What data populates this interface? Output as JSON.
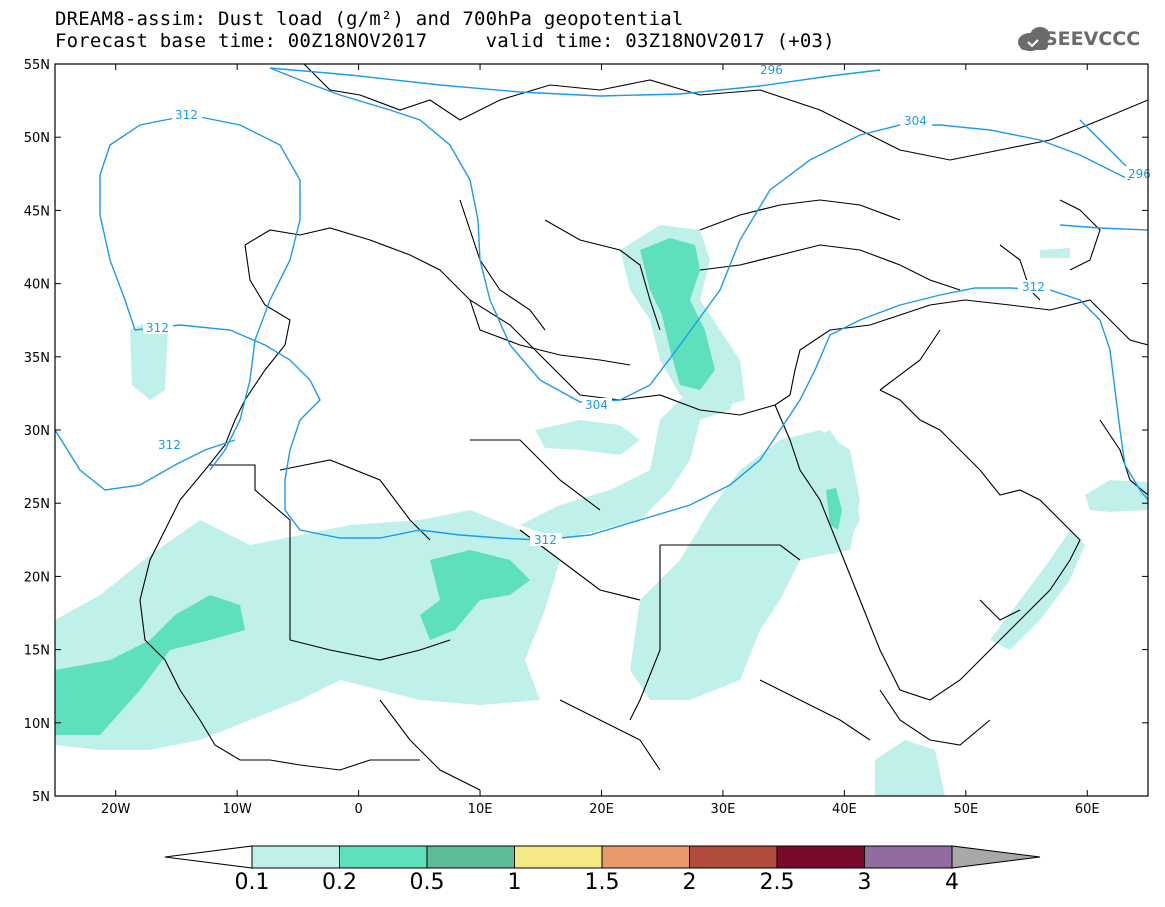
{
  "title": {
    "line1": "DREAM8-assim: Dust load (g/m²) and 700hPa geopotential",
    "line2": "Forecast base time: 00Z18NOV2017     valid time: 03Z18NOV2017 (+03)"
  },
  "logo": {
    "text": "SEEVCCC",
    "icon": "cloud-icon"
  },
  "map": {
    "lat_labels": [
      "55N",
      "50N",
      "45N",
      "40N",
      "35N",
      "30N",
      "25N",
      "20N",
      "15N",
      "10N",
      "5N"
    ],
    "lon_labels": [
      "20W",
      "10W",
      "0",
      "10E",
      "20E",
      "30E",
      "40E",
      "50E",
      "60E"
    ],
    "lon_range": [
      -25,
      65
    ],
    "lat_range": [
      5,
      55
    ],
    "contour_labels": [
      "296",
      "312",
      "304",
      "296",
      "312",
      "312",
      "312",
      "304",
      "312"
    ]
  },
  "colorbar": {
    "labels": [
      "0.1",
      "0.2",
      "0.5",
      "1",
      "1.5",
      "2",
      "2.5",
      "3",
      "4"
    ],
    "colors": [
      "#c0f0ea",
      "#5ee0bc",
      "#5ebc98",
      "#f5e985",
      "#e99a6a",
      "#b04c3c",
      "#7a0a2a",
      "#906ca0"
    ],
    "low_color": "#ffffff",
    "high_color": "#a8a8a8"
  },
  "colors": {
    "contour": "#1e9be8",
    "coastline": "#000000"
  }
}
